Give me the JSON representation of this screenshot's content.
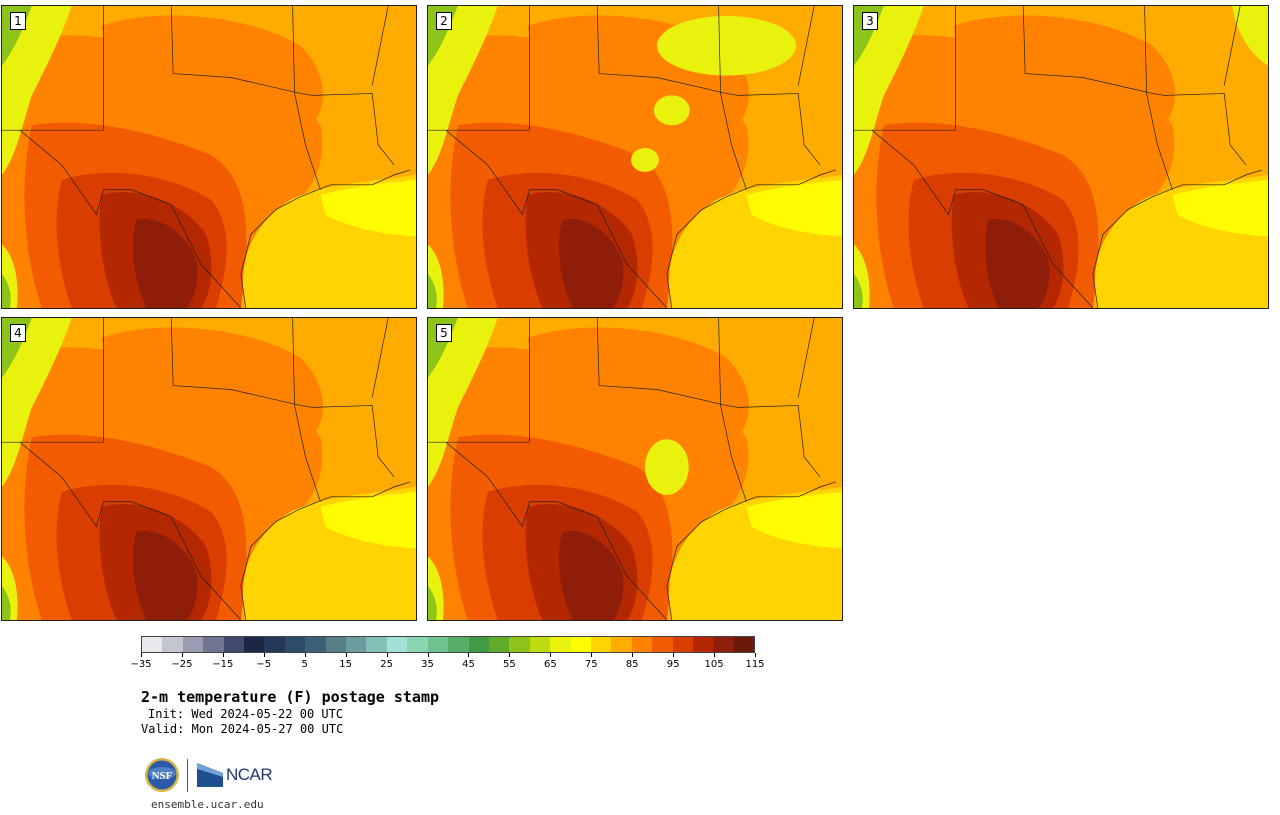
{
  "figure": {
    "title": "2-m temperature (F) postage stamp",
    "init": "Init: Wed 2024-05-22 00 UTC",
    "valid": "Valid: Mon 2024-05-27 00 UTC",
    "url": "ensemble.ucar.edu",
    "logos": {
      "nsf": "NSF",
      "ncar": "NCAR"
    }
  },
  "panels": [
    {
      "label": "1",
      "variant": 1
    },
    {
      "label": "2",
      "variant": 2
    },
    {
      "label": "3",
      "variant": 3
    },
    {
      "label": "4",
      "variant": 4
    },
    {
      "label": "5",
      "variant": 5
    }
  ],
  "colorbar": {
    "unit": "F",
    "min": -35,
    "max": 120,
    "step": 5,
    "tick_labels": [
      "−35",
      "−25",
      "−15",
      "−5",
      "5",
      "15",
      "25",
      "35",
      "45",
      "55",
      "65",
      "75",
      "85",
      "95",
      "105",
      "115"
    ],
    "colors": [
      "#e6e8ee",
      "#c3c5d0",
      "#9a9daf",
      "#6f7590",
      "#3f4a6d",
      "#1c2744",
      "#24385c",
      "#2e4b6a",
      "#3e6077",
      "#567f88",
      "#6b9d9e",
      "#84bfb7",
      "#a2e1d4",
      "#8ad6b3",
      "#6ec38f",
      "#57ad6a",
      "#419a44",
      "#5fab2b",
      "#8cc41a",
      "#bedc0e",
      "#e8f20c",
      "#fffb00",
      "#ffd400",
      "#ffab00",
      "#ff8200",
      "#f35b00",
      "#d93d00",
      "#b32800",
      "#8e1e0a",
      "#6b1908"
    ]
  },
  "map_colors": {
    "ocean": "#ffd400",
    "coast_band": "#fffb00",
    "land_base": "#ffab00",
    "warm": "#ff8200",
    "hot": "#f35b00",
    "very_hot": "#d93d00",
    "extreme": "#b32800",
    "extreme2": "#8e1e0a",
    "cool_highland": "#e8f20c",
    "green_mountain": "#8cc41a",
    "green_deep": "#5fab2b",
    "boundary": "#222222"
  }
}
